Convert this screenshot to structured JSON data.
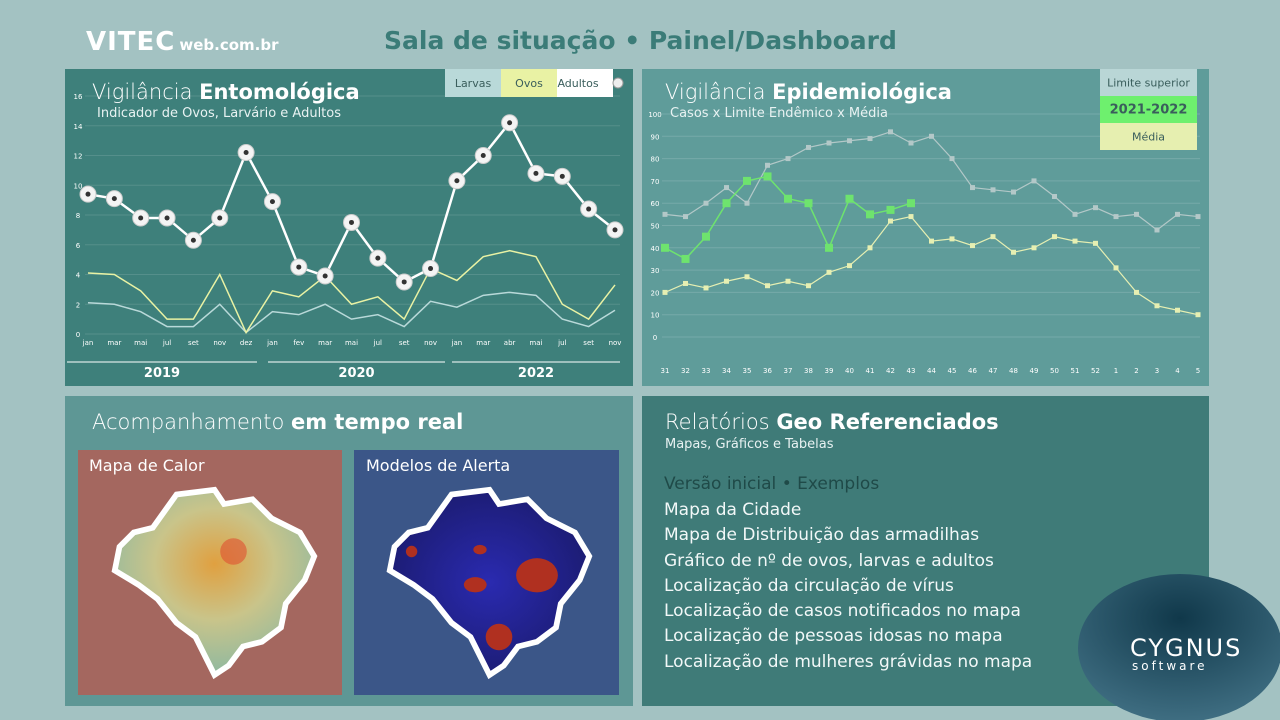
{
  "header": {
    "logo": "VITEC",
    "logo_suffix": "web.com.br",
    "title": "Sala de situação • Painel/Dashboard"
  },
  "entomologica": {
    "title_light": "Vigilância",
    "title_bold": "Entomológica",
    "subtitle": "Indicador de Ovos, Larvário e Adultos",
    "chart_data": {
      "type": "line",
      "categories": [
        "jan",
        "mar",
        "mai",
        "jul",
        "set",
        "nov",
        "dez",
        "jan",
        "fev",
        "mar",
        "mai",
        "jul",
        "set",
        "nov",
        "jan",
        "mar",
        "abr",
        "mai",
        "jul",
        "set",
        "nov"
      ],
      "series": [
        {
          "name": "Larvas",
          "color": "#b9d9d9",
          "values": [
            2.1,
            2.0,
            1.5,
            0.5,
            0.5,
            2.0,
            0.1,
            1.5,
            1.3,
            2.0,
            1.0,
            1.3,
            0.5,
            2.2,
            1.8,
            2.6,
            2.8,
            2.6,
            1.0,
            0.5,
            1.6
          ]
        },
        {
          "name": "Ovos",
          "color": "#e9f2a4",
          "values": [
            4.1,
            4.0,
            2.9,
            1.0,
            1.0,
            4.0,
            0.1,
            2.9,
            2.5,
            3.9,
            2.0,
            2.5,
            1.0,
            4.4,
            3.6,
            5.2,
            5.6,
            5.2,
            2.0,
            1.0,
            3.3
          ]
        },
        {
          "name": "Adultos",
          "color": "#ffffff",
          "values": [
            9.4,
            9.1,
            7.8,
            7.8,
            6.3,
            7.8,
            12.2,
            8.9,
            4.5,
            3.9,
            7.5,
            5.1,
            3.5,
            4.4,
            10.3,
            12.0,
            14.2,
            10.8,
            10.6,
            8.4,
            7.0
          ]
        }
      ],
      "ylim": [
        0,
        16
      ],
      "yticks": [
        0,
        2,
        4,
        6,
        8,
        10,
        12,
        14,
        16
      ],
      "grid": true,
      "years": [
        "2019",
        "2020",
        "2022"
      ]
    }
  },
  "epidemiologica": {
    "title_light": "Vigilância",
    "title_bold": "Epidemiológica",
    "subtitle": "Casos x Limite Endêmico x Média",
    "chart_data": {
      "type": "line",
      "categories": [
        "31",
        "32",
        "33",
        "34",
        "35",
        "36",
        "37",
        "38",
        "39",
        "40",
        "41",
        "42",
        "43",
        "44",
        "45",
        "46",
        "47",
        "48",
        "49",
        "50",
        "51",
        "52",
        "1",
        "2",
        "3",
        "4",
        "5"
      ],
      "series": [
        {
          "name": "Limite superior",
          "color": "#b3c8c8",
          "values": [
            55,
            54,
            60,
            67,
            60,
            77,
            80,
            85,
            87,
            88,
            89,
            92,
            87,
            90,
            80,
            67,
            66,
            65,
            70,
            63,
            55,
            58,
            54,
            55,
            48,
            55,
            54
          ]
        },
        {
          "name": "2021-2022",
          "color": "#6ee36e",
          "values": [
            40,
            35,
            45,
            60,
            70,
            72,
            62,
            60,
            40,
            62,
            55,
            57,
            60,
            null,
            null,
            null,
            null,
            null,
            null,
            null,
            null,
            null,
            null,
            null,
            null,
            null,
            null
          ]
        },
        {
          "name": "Média",
          "color": "#e6efb2",
          "values": [
            20,
            24,
            22,
            25,
            27,
            23,
            25,
            23,
            29,
            32,
            40,
            52,
            54,
            43,
            44,
            41,
            45,
            38,
            40,
            45,
            43,
            42,
            31,
            20,
            14,
            12,
            10
          ]
        }
      ],
      "ylim": [
        0,
        100
      ],
      "yticks": [
        0,
        10,
        20,
        30,
        40,
        50,
        60,
        70,
        80,
        90,
        100
      ],
      "grid": true
    }
  },
  "tempo_real": {
    "title_light": "Acompanhamento",
    "title_bold": "em tempo real",
    "maps": [
      "Mapa de Calor",
      "Modelos de Alerta"
    ]
  },
  "relatorios": {
    "title_light": "Relatórios",
    "title_bold": "Geo Referenciados",
    "subtitle": "Mapas, Gráficos e Tabelas",
    "intro": "Versão inicial",
    "intro_suffix": "• Exemplos",
    "items": [
      "Mapa da Cidade",
      "Mapa de Distribuição das armadilhas",
      "Gráfico de nº de ovos, larvas e adultos",
      "Localização da circulação de vírus",
      "Localização de casos notificados no mapa",
      "Localização de pessoas idosas no mapa",
      "Localização de mulheres grávidas no mapa"
    ]
  },
  "footer": {
    "brand": "CYGNUS",
    "brand_sub": "software"
  }
}
